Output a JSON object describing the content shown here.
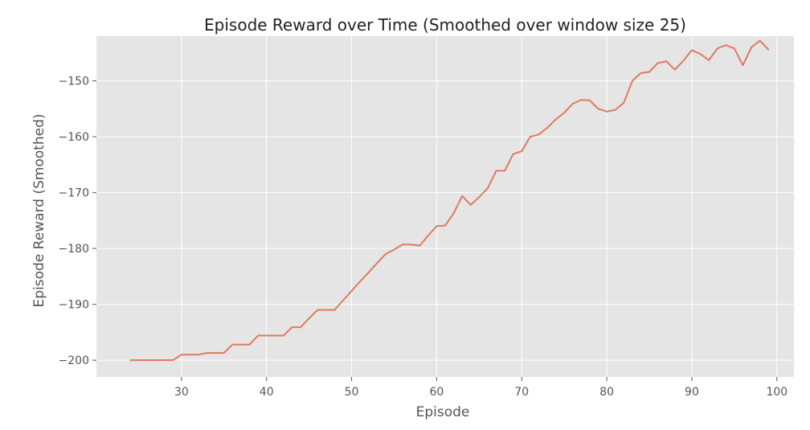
{
  "chart_data": {
    "type": "line",
    "title": "Episode Reward over Time (Smoothed over window size 25)",
    "xlabel": "Episode",
    "ylabel": "Episode Reward (Smoothed)",
    "xlim": [
      20,
      102
    ],
    "ylim": [
      -203,
      -142
    ],
    "xticks": [
      30,
      40,
      50,
      60,
      70,
      80,
      90,
      100
    ],
    "yticks": [
      -200,
      -190,
      -180,
      -170,
      -160,
      -150
    ],
    "grid": true,
    "series": [
      {
        "color": "#e07a5f",
        "x": [
          24,
          25,
          26,
          27,
          28,
          29,
          30,
          31,
          32,
          33,
          34,
          35,
          36,
          37,
          38,
          39,
          40,
          41,
          42,
          43,
          44,
          45,
          46,
          47,
          48,
          49,
          50,
          51,
          52,
          53,
          54,
          55,
          56,
          57,
          58,
          59,
          60,
          61,
          62,
          63,
          64,
          65,
          66,
          67,
          68,
          69,
          70,
          71,
          72,
          73,
          74,
          75,
          76,
          77,
          78,
          79,
          80,
          81,
          82,
          83,
          84,
          85,
          86,
          87,
          88,
          89,
          90,
          91,
          92,
          93,
          94,
          95,
          96,
          97,
          98,
          99
        ],
        "y": [
          -200,
          -200,
          -200,
          -200,
          -200,
          -200,
          -199,
          -199,
          -199,
          -198.7,
          -198.7,
          -198.7,
          -197.2,
          -197.2,
          -197.2,
          -195.6,
          -195.6,
          -195.6,
          -195.6,
          -194.1,
          -194.1,
          -192.5,
          -191.0,
          -191.0,
          -191.0,
          -189.3,
          -187.6,
          -185.9,
          -184.3,
          -182.6,
          -181.0,
          -180.2,
          -179.3,
          -179.3,
          -179.5,
          -177.7,
          -176.0,
          -175.9,
          -173.7,
          -170.6,
          -172.2,
          -170.8,
          -169.2,
          -166.1,
          -166.1,
          -163.1,
          -162.6,
          -160.0,
          -159.6,
          -158.4,
          -156.9,
          -155.7,
          -154.1,
          -153.4,
          -153.5,
          -155.0,
          -155.5,
          -155.2,
          -153.9,
          -150.0,
          -148.6,
          -148.4,
          -146.8,
          -146.5,
          -148.0,
          -146.4,
          -144.5,
          -145.2,
          -146.3,
          -144.2,
          -143.6,
          -144.2,
          -147.2,
          -144.0,
          -142.8,
          -144.4
        ]
      }
    ]
  },
  "colors": {
    "plot_background": "#e5e5e5",
    "grid": "#ffffff",
    "line": "#e07a5f"
  }
}
